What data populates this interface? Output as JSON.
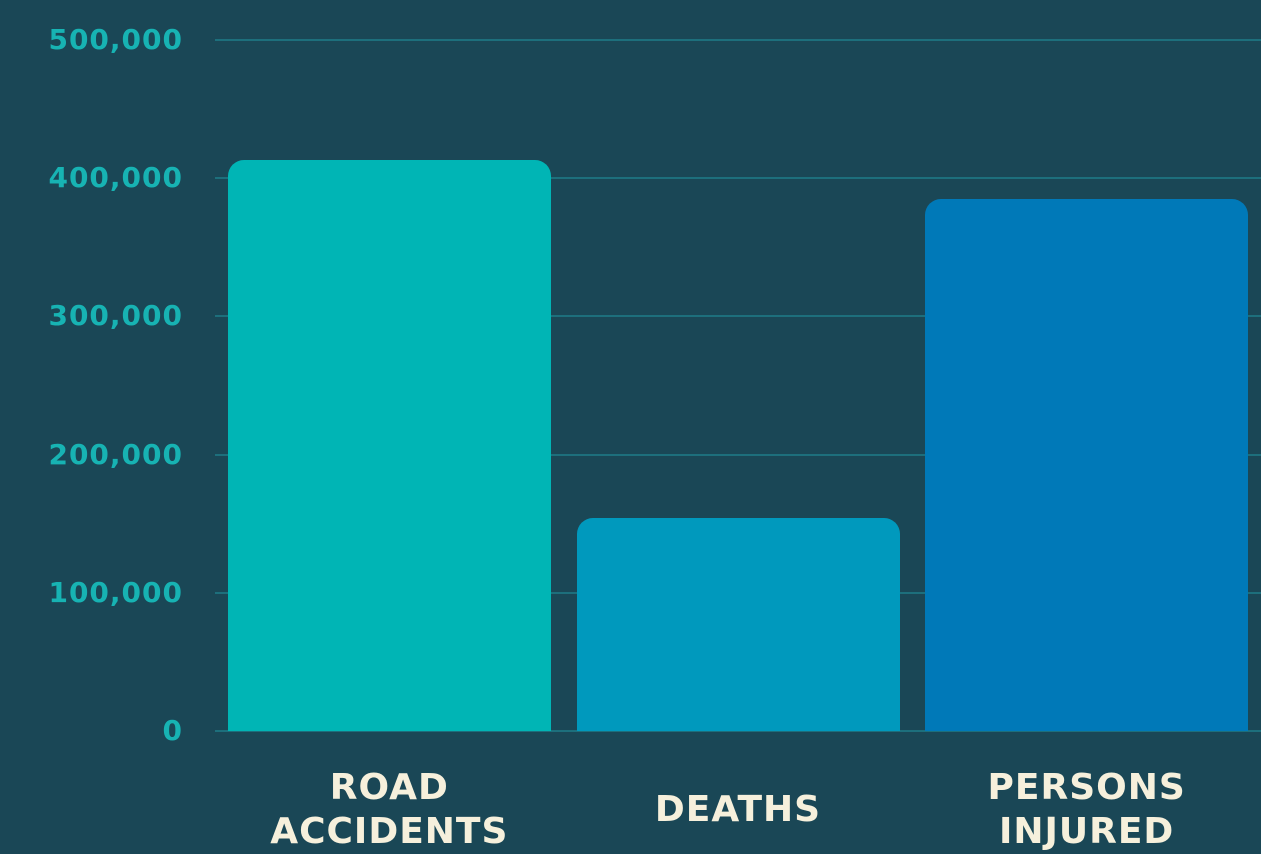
{
  "chart_data": {
    "type": "bar",
    "categories": [
      "ROAD ACCIDENTS",
      "DEATHS",
      "PERSONS INJURED"
    ],
    "values": [
      413000,
      154000,
      385000
    ],
    "colors": [
      "#00b5b5",
      "#0099bd",
      "#0079b8"
    ],
    "ylim": [
      0,
      500000
    ],
    "yticks": [
      0,
      {
        "value": 100000,
        "label": "100,000"
      },
      {
        "value": 200000,
        "label": "200,000"
      },
      {
        "value": 300000,
        "label": "300,000"
      },
      {
        "value": 400000,
        "label": "400,000"
      },
      {
        "value": 500000,
        "label": "500,000"
      }
    ],
    "grid": true
  }
}
